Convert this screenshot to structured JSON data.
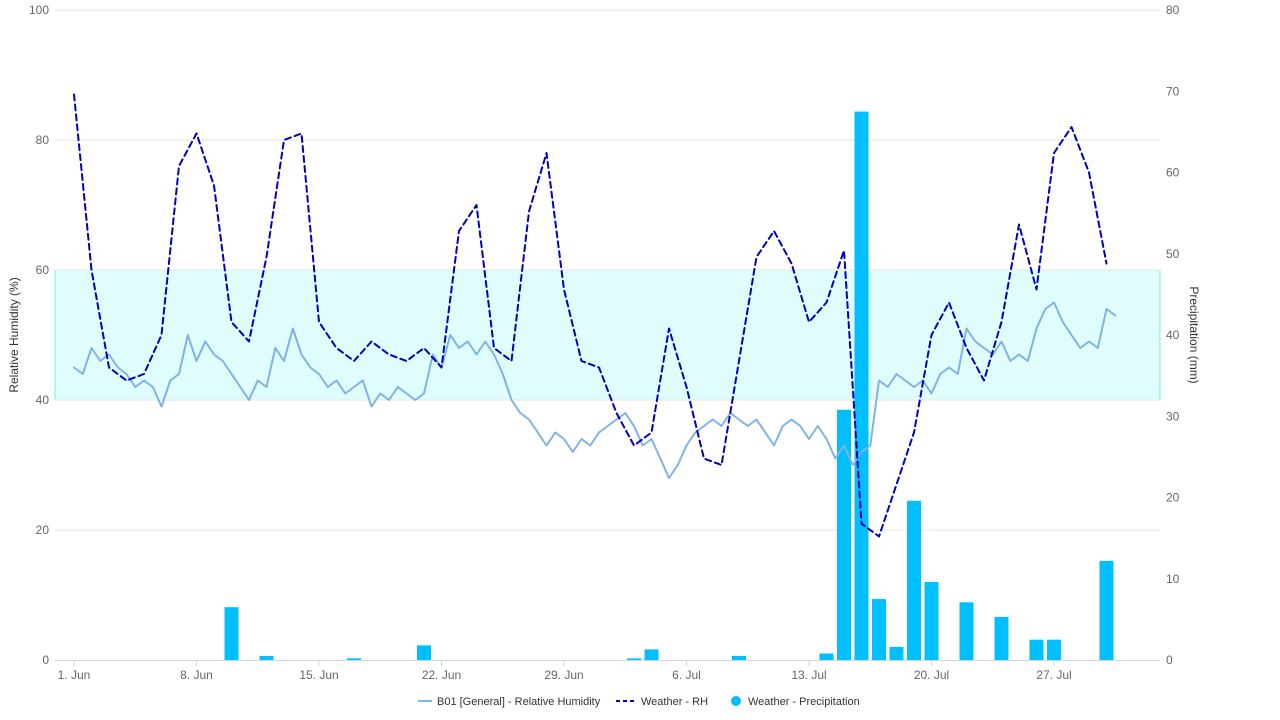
{
  "chart_data": {
    "type": "line",
    "x_axis": {
      "type": "date",
      "min": "2024-06-01",
      "max": "2024-07-31",
      "tick_labels": [
        "1. Jun",
        "8. Jun",
        "15. Jun",
        "22. Jun",
        "29. Jun",
        "6. Jul",
        "13. Jul",
        "20. Jul",
        "27. Jul"
      ],
      "tick_dates": [
        "2024-06-01",
        "2024-06-08",
        "2024-06-15",
        "2024-06-22",
        "2024-06-29",
        "2024-07-06",
        "2024-07-13",
        "2024-07-20",
        "2024-07-27"
      ]
    },
    "y_axis_left": {
      "label": "Relative Humidity (%)",
      "min": 0,
      "max": 100,
      "ticks": [
        0,
        20,
        40,
        60,
        80,
        100
      ]
    },
    "y_axis_right": {
      "label": "Precipitation (mm)",
      "min": 0,
      "max": 80,
      "ticks": [
        0,
        10,
        20,
        30,
        40,
        50,
        60,
        70,
        80
      ]
    },
    "band": {
      "from": 40,
      "to": 60,
      "color": "#e0fdfd",
      "border": "#7fe8f0"
    },
    "grid": true,
    "legend_position": "bottom-center",
    "series": [
      {
        "name": "B01 [General] - Relative Humidity",
        "type": "line",
        "axis": "left",
        "color": "#7fb2e5",
        "dash": "solid",
        "points": [
          [
            "2024-06-01",
            45
          ],
          [
            "2024-06-01T12:00",
            44
          ],
          [
            "2024-06-02",
            48
          ],
          [
            "2024-06-02T12:00",
            46
          ],
          [
            "2024-06-03",
            47
          ],
          [
            "2024-06-03T12:00",
            45
          ],
          [
            "2024-06-04",
            44
          ],
          [
            "2024-06-04T12:00",
            42
          ],
          [
            "2024-06-05",
            43
          ],
          [
            "2024-06-05T12:00",
            42
          ],
          [
            "2024-06-06",
            39
          ],
          [
            "2024-06-06T12:00",
            43
          ],
          [
            "2024-06-07",
            44
          ],
          [
            "2024-06-07T12:00",
            50
          ],
          [
            "2024-06-08",
            46
          ],
          [
            "2024-06-08T12:00",
            49
          ],
          [
            "2024-06-09",
            47
          ],
          [
            "2024-06-09T12:00",
            46
          ],
          [
            "2024-06-10",
            44
          ],
          [
            "2024-06-10T12:00",
            42
          ],
          [
            "2024-06-11",
            40
          ],
          [
            "2024-06-11T12:00",
            43
          ],
          [
            "2024-06-12",
            42
          ],
          [
            "2024-06-12T12:00",
            48
          ],
          [
            "2024-06-13",
            46
          ],
          [
            "2024-06-13T12:00",
            51
          ],
          [
            "2024-06-14",
            47
          ],
          [
            "2024-06-14T12:00",
            45
          ],
          [
            "2024-06-15",
            44
          ],
          [
            "2024-06-15T12:00",
            42
          ],
          [
            "2024-06-16",
            43
          ],
          [
            "2024-06-16T12:00",
            41
          ],
          [
            "2024-06-17",
            42
          ],
          [
            "2024-06-17T12:00",
            43
          ],
          [
            "2024-06-18",
            39
          ],
          [
            "2024-06-18T12:00",
            41
          ],
          [
            "2024-06-19",
            40
          ],
          [
            "2024-06-19T12:00",
            42
          ],
          [
            "2024-06-20",
            41
          ],
          [
            "2024-06-20T12:00",
            40
          ],
          [
            "2024-06-21",
            41
          ],
          [
            "2024-06-21T12:00",
            47
          ],
          [
            "2024-06-22",
            45
          ],
          [
            "2024-06-22T12:00",
            50
          ],
          [
            "2024-06-23",
            48
          ],
          [
            "2024-06-23T12:00",
            49
          ],
          [
            "2024-06-24",
            47
          ],
          [
            "2024-06-24T12:00",
            49
          ],
          [
            "2024-06-25",
            47
          ],
          [
            "2024-06-25T12:00",
            44
          ],
          [
            "2024-06-26",
            40
          ],
          [
            "2024-06-26T12:00",
            38
          ],
          [
            "2024-06-27",
            37
          ],
          [
            "2024-06-27T12:00",
            35
          ],
          [
            "2024-06-28",
            33
          ],
          [
            "2024-06-28T12:00",
            35
          ],
          [
            "2024-06-29",
            34
          ],
          [
            "2024-06-29T12:00",
            32
          ],
          [
            "2024-06-30",
            34
          ],
          [
            "2024-06-30T12:00",
            33
          ],
          [
            "2024-07-01",
            35
          ],
          [
            "2024-07-01T12:00",
            36
          ],
          [
            "2024-07-02",
            37
          ],
          [
            "2024-07-02T12:00",
            38
          ],
          [
            "2024-07-03",
            36
          ],
          [
            "2024-07-03T12:00",
            33
          ],
          [
            "2024-07-04",
            34
          ],
          [
            "2024-07-04T12:00",
            31
          ],
          [
            "2024-07-05",
            28
          ],
          [
            "2024-07-05T12:00",
            30
          ],
          [
            "2024-07-06",
            33
          ],
          [
            "2024-07-06T12:00",
            35
          ],
          [
            "2024-07-07",
            36
          ],
          [
            "2024-07-07T12:00",
            37
          ],
          [
            "2024-07-08",
            36
          ],
          [
            "2024-07-08T12:00",
            38
          ],
          [
            "2024-07-09",
            37
          ],
          [
            "2024-07-09T12:00",
            36
          ],
          [
            "2024-07-10",
            37
          ],
          [
            "2024-07-10T12:00",
            35
          ],
          [
            "2024-07-11",
            33
          ],
          [
            "2024-07-11T12:00",
            36
          ],
          [
            "2024-07-12",
            37
          ],
          [
            "2024-07-12T12:00",
            36
          ],
          [
            "2024-07-13",
            34
          ],
          [
            "2024-07-13T12:00",
            36
          ],
          [
            "2024-07-14",
            34
          ],
          [
            "2024-07-14T12:00",
            31
          ],
          [
            "2024-07-15",
            33
          ],
          [
            "2024-07-15T12:00",
            30
          ],
          [
            "2024-07-16",
            32
          ],
          [
            "2024-07-16T12:00",
            33
          ],
          [
            "2024-07-17",
            43
          ],
          [
            "2024-07-17T12:00",
            42
          ],
          [
            "2024-07-18",
            44
          ],
          [
            "2024-07-18T12:00",
            43
          ],
          [
            "2024-07-19",
            42
          ],
          [
            "2024-07-19T12:00",
            43
          ],
          [
            "2024-07-20",
            41
          ],
          [
            "2024-07-20T12:00",
            44
          ],
          [
            "2024-07-21",
            45
          ],
          [
            "2024-07-21T12:00",
            44
          ],
          [
            "2024-07-22",
            51
          ],
          [
            "2024-07-22T12:00",
            49
          ],
          [
            "2024-07-23",
            48
          ],
          [
            "2024-07-23T12:00",
            47
          ],
          [
            "2024-07-24",
            49
          ],
          [
            "2024-07-24T12:00",
            46
          ],
          [
            "2024-07-25",
            47
          ],
          [
            "2024-07-25T12:00",
            46
          ],
          [
            "2024-07-26",
            51
          ],
          [
            "2024-07-26T12:00",
            54
          ],
          [
            "2024-07-27",
            55
          ],
          [
            "2024-07-27T12:00",
            52
          ],
          [
            "2024-07-28",
            50
          ],
          [
            "2024-07-28T12:00",
            48
          ],
          [
            "2024-07-29",
            49
          ],
          [
            "2024-07-29T12:00",
            48
          ],
          [
            "2024-07-30",
            54
          ],
          [
            "2024-07-30T12:00",
            53
          ]
        ]
      },
      {
        "name": "Weather - RH",
        "type": "line",
        "axis": "left",
        "color": "#0000c0",
        "dash": "dashed",
        "points": [
          [
            "2024-06-01",
            87
          ],
          [
            "2024-06-02",
            60
          ],
          [
            "2024-06-03",
            45
          ],
          [
            "2024-06-04",
            43
          ],
          [
            "2024-06-05",
            44
          ],
          [
            "2024-06-06",
            50
          ],
          [
            "2024-06-07",
            76
          ],
          [
            "2024-06-08",
            81
          ],
          [
            "2024-06-09",
            73
          ],
          [
            "2024-06-10",
            52
          ],
          [
            "2024-06-11",
            49
          ],
          [
            "2024-06-12",
            62
          ],
          [
            "2024-06-13",
            80
          ],
          [
            "2024-06-14",
            81
          ],
          [
            "2024-06-15",
            52
          ],
          [
            "2024-06-16",
            48
          ],
          [
            "2024-06-17",
            46
          ],
          [
            "2024-06-18",
            49
          ],
          [
            "2024-06-19",
            47
          ],
          [
            "2024-06-20",
            46
          ],
          [
            "2024-06-21",
            48
          ],
          [
            "2024-06-22",
            45
          ],
          [
            "2024-06-23",
            66
          ],
          [
            "2024-06-24",
            70
          ],
          [
            "2024-06-25",
            48
          ],
          [
            "2024-06-26",
            46
          ],
          [
            "2024-06-27",
            69
          ],
          [
            "2024-06-28",
            78
          ],
          [
            "2024-06-29",
            57
          ],
          [
            "2024-06-30",
            46
          ],
          [
            "2024-07-01",
            45
          ],
          [
            "2024-07-02",
            38
          ],
          [
            "2024-07-03",
            33
          ],
          [
            "2024-07-04",
            35
          ],
          [
            "2024-07-05",
            51
          ],
          [
            "2024-07-06",
            42
          ],
          [
            "2024-07-07",
            31
          ],
          [
            "2024-07-08",
            30
          ],
          [
            "2024-07-09",
            46
          ],
          [
            "2024-07-10",
            62
          ],
          [
            "2024-07-11",
            66
          ],
          [
            "2024-07-12",
            61
          ],
          [
            "2024-07-13",
            52
          ],
          [
            "2024-07-14",
            55
          ],
          [
            "2024-07-15",
            63
          ],
          [
            "2024-07-16",
            21
          ],
          [
            "2024-07-17",
            19
          ],
          [
            "2024-07-18",
            27
          ],
          [
            "2024-07-19",
            35
          ],
          [
            "2024-07-20",
            50
          ],
          [
            "2024-07-21",
            55
          ],
          [
            "2024-07-22",
            48
          ],
          [
            "2024-07-23",
            43
          ],
          [
            "2024-07-24",
            52
          ],
          [
            "2024-07-25",
            67
          ],
          [
            "2024-07-26",
            57
          ],
          [
            "2024-07-27",
            78
          ],
          [
            "2024-07-28",
            82
          ],
          [
            "2024-07-29",
            75
          ],
          [
            "2024-07-30",
            61
          ]
        ]
      },
      {
        "name": "Weather - Precipitation",
        "type": "bar",
        "axis": "right",
        "color": "#00bfff",
        "points": [
          [
            "2024-06-10",
            6.5
          ],
          [
            "2024-06-12",
            0.5
          ],
          [
            "2024-06-17",
            0.2
          ],
          [
            "2024-06-21",
            1.8
          ],
          [
            "2024-07-03",
            0.2
          ],
          [
            "2024-07-04",
            1.3
          ],
          [
            "2024-07-09",
            0.5
          ],
          [
            "2024-07-14",
            0.8
          ],
          [
            "2024-07-15",
            30.8
          ],
          [
            "2024-07-16",
            67.5
          ],
          [
            "2024-07-17",
            7.5
          ],
          [
            "2024-07-18",
            1.6
          ],
          [
            "2024-07-19",
            19.6
          ],
          [
            "2024-07-20",
            9.6
          ],
          [
            "2024-07-22",
            7.1
          ],
          [
            "2024-07-24",
            5.3
          ],
          [
            "2024-07-26",
            2.5
          ],
          [
            "2024-07-27",
            2.5
          ],
          [
            "2024-07-30",
            12.2
          ]
        ]
      }
    ]
  }
}
